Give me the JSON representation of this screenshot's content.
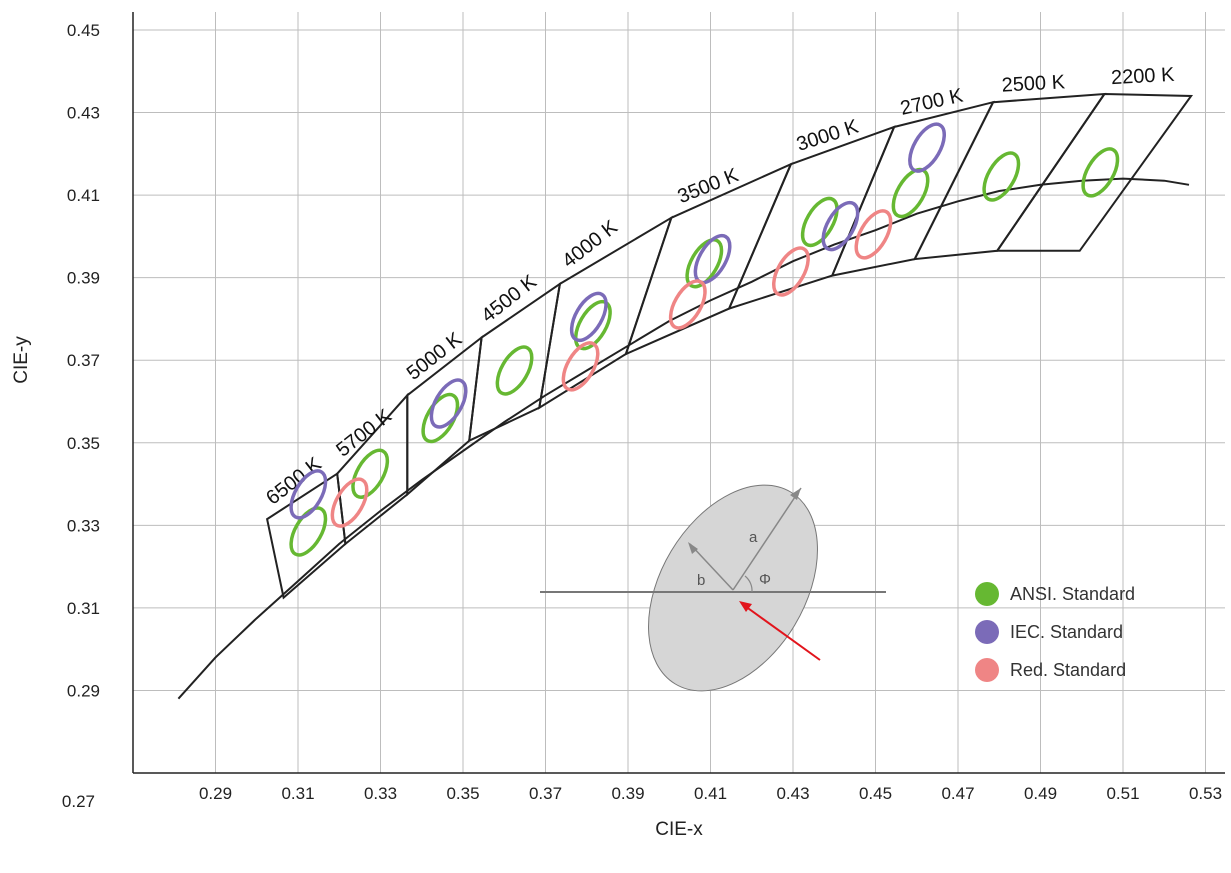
{
  "chart_data": {
    "type": "scatter",
    "title": "",
    "xlabel": "CIE-x",
    "ylabel": "CIE-y",
    "xlim": [
      0.27,
      0.53
    ],
    "ylim": [
      0.27,
      0.45
    ],
    "x_ticks": [
      "0.29",
      "0.31",
      "0.33",
      "0.35",
      "0.37",
      "0.39",
      "0.41",
      "0.43",
      "0.45",
      "0.47",
      "0.49",
      "0.51",
      "0.53"
    ],
    "y_ticks": [
      "0.45",
      "0.43",
      "0.41",
      "0.39",
      "0.37",
      "0.35",
      "0.33",
      "0.31",
      "0.29",
      "0.27"
    ],
    "grid": true,
    "planckian_locus": {
      "x": [
        0.281,
        0.29,
        0.3,
        0.31,
        0.32,
        0.33,
        0.34,
        0.35,
        0.36,
        0.37,
        0.38,
        0.39,
        0.4,
        0.41,
        0.42,
        0.43,
        0.44,
        0.45,
        0.46,
        0.47,
        0.48,
        0.49,
        0.5,
        0.51,
        0.52,
        0.526
      ],
      "y": [
        0.288,
        0.298,
        0.3075,
        0.3165,
        0.3255,
        0.3335,
        0.341,
        0.348,
        0.355,
        0.3615,
        0.3675,
        0.3735,
        0.3795,
        0.3845,
        0.389,
        0.394,
        0.398,
        0.4015,
        0.4055,
        0.4085,
        0.411,
        0.4125,
        0.4135,
        0.414,
        0.4135,
        0.4125
      ]
    },
    "cct_quadrangles": [
      {
        "label": "6500 K",
        "corners": [
          [
            0.3025,
            0.3315
          ],
          [
            0.3195,
            0.3425
          ],
          [
            0.3215,
            0.3255
          ],
          [
            0.3065,
            0.3125
          ]
        ]
      },
      {
        "label": "5700 K",
        "corners": [
          [
            0.3195,
            0.3425
          ],
          [
            0.3365,
            0.3615
          ],
          [
            0.3365,
            0.3375
          ],
          [
            0.3215,
            0.3255
          ]
        ]
      },
      {
        "label": "5000 K",
        "corners": [
          [
            0.3365,
            0.3615
          ],
          [
            0.3545,
            0.3755
          ],
          [
            0.3515,
            0.3505
          ],
          [
            0.3365,
            0.3375
          ]
        ]
      },
      {
        "label": "4500 K",
        "corners": [
          [
            0.3545,
            0.3755
          ],
          [
            0.3735,
            0.3885
          ],
          [
            0.3685,
            0.3585
          ],
          [
            0.3515,
            0.3505
          ]
        ]
      },
      {
        "label": "4000 K",
        "corners": [
          [
            0.3735,
            0.3885
          ],
          [
            0.4005,
            0.4045
          ],
          [
            0.3895,
            0.3715
          ],
          [
            0.3685,
            0.3585
          ]
        ]
      },
      {
        "label": "3500 K",
        "corners": [
          [
            0.4005,
            0.4045
          ],
          [
            0.4295,
            0.4175
          ],
          [
            0.4145,
            0.3825
          ],
          [
            0.3895,
            0.3715
          ]
        ]
      },
      {
        "label": "3000 K",
        "corners": [
          [
            0.4295,
            0.4175
          ],
          [
            0.4545,
            0.4265
          ],
          [
            0.4395,
            0.3905
          ],
          [
            0.4145,
            0.3825
          ]
        ]
      },
      {
        "label": "2700 K",
        "corners": [
          [
            0.4545,
            0.4265
          ],
          [
            0.4785,
            0.4325
          ],
          [
            0.4595,
            0.3945
          ],
          [
            0.4395,
            0.3905
          ]
        ]
      },
      {
        "label": "2500 K",
        "corners": [
          [
            0.4785,
            0.4325
          ],
          [
            0.5055,
            0.4345
          ],
          [
            0.4795,
            0.3965
          ],
          [
            0.4595,
            0.3945
          ]
        ]
      },
      {
        "label": "2200 K",
        "corners": [
          [
            0.5055,
            0.4345
          ],
          [
            0.5265,
            0.434
          ],
          [
            0.4995,
            0.3965
          ],
          [
            0.4795,
            0.3965
          ]
        ]
      }
    ],
    "series": [
      {
        "name": "ANSI. Standard",
        "color": "#66b832",
        "points": [
          [
            0.3125,
            0.3285
          ],
          [
            0.3275,
            0.3425
          ],
          [
            0.3445,
            0.356
          ],
          [
            0.3625,
            0.3675
          ],
          [
            0.3815,
            0.3785
          ],
          [
            0.4085,
            0.3935
          ],
          [
            0.4365,
            0.4035
          ],
          [
            0.4585,
            0.4105
          ],
          [
            0.4805,
            0.4145
          ],
          [
            0.5045,
            0.4155
          ]
        ]
      },
      {
        "name": "IEC. Standard",
        "color": "#7b6bb8",
        "points": [
          [
            0.3125,
            0.3375
          ],
          [
            0.3465,
            0.3595
          ],
          [
            0.3805,
            0.3805
          ],
          [
            0.4105,
            0.3945
          ],
          [
            0.4415,
            0.4025
          ],
          [
            0.4625,
            0.4215
          ]
        ]
      },
      {
        "name": "Red. Standard",
        "color": "#ef8585",
        "points": [
          [
            0.3225,
            0.3355
          ],
          [
            0.3785,
            0.3685
          ],
          [
            0.4045,
            0.3835
          ],
          [
            0.4295,
            0.3915
          ],
          [
            0.4495,
            0.4005
          ]
        ]
      }
    ],
    "legend": {
      "placement": "bottom-right",
      "entries": [
        "ANSI. Standard",
        "IEC. Standard",
        "Red. Standard"
      ]
    },
    "inset_labels": {
      "a": "a",
      "b": "b",
      "phi": "Φ"
    }
  }
}
